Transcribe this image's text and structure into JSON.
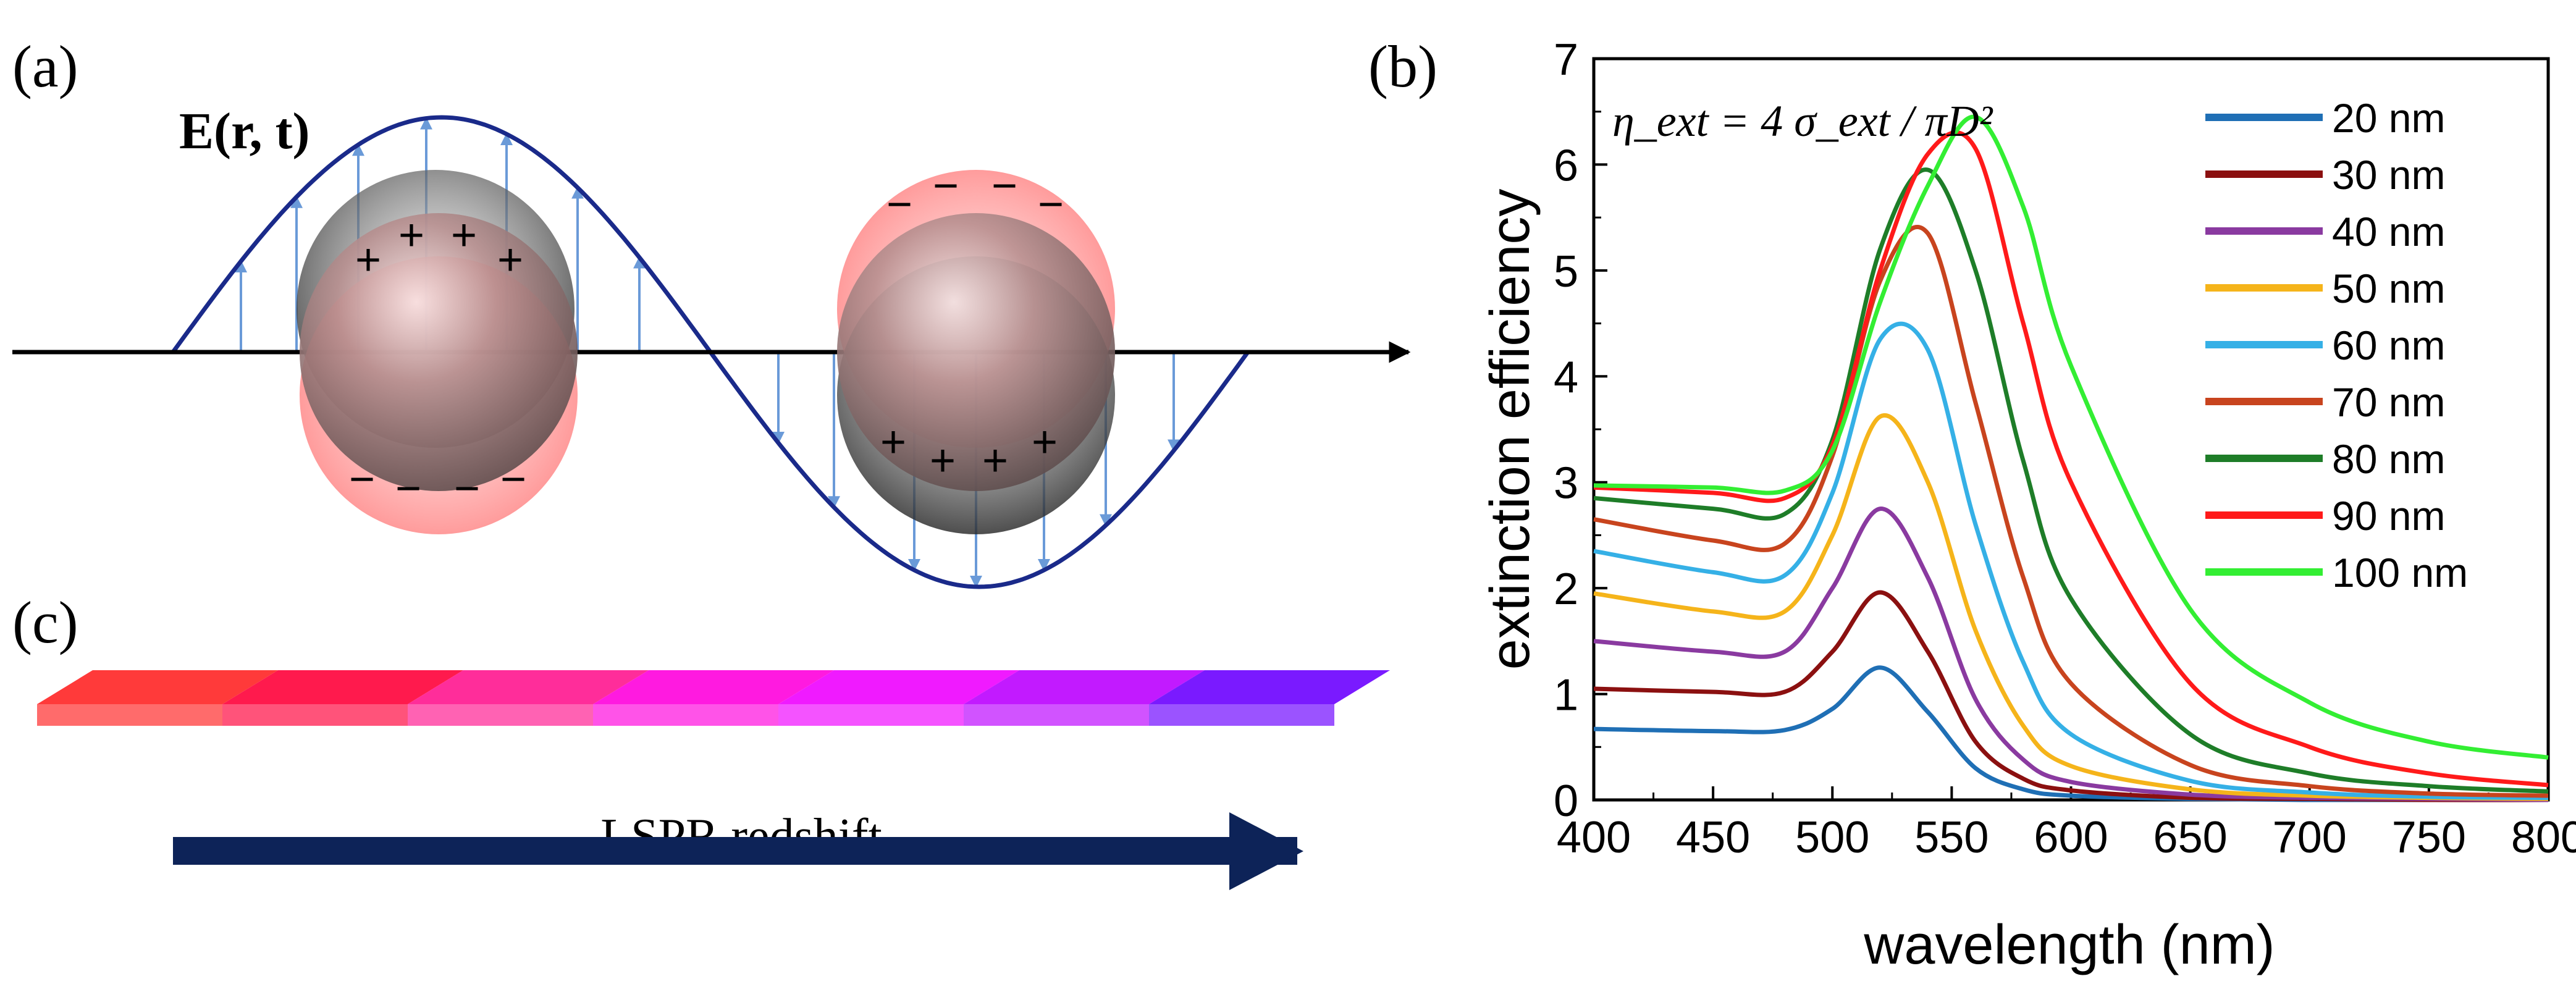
{
  "panels": {
    "a": {
      "label": "(a)",
      "field_label": "E(r, t)"
    },
    "b": {
      "label": "(b)",
      "formula": "η_ext = 4 σ_ext / πD²"
    },
    "c": {
      "label": "(c)",
      "arrow_label": "LSPR redshift"
    }
  },
  "charges": {
    "plus": "+",
    "minus": "−"
  },
  "swatch_colors": [
    "#ff3a3a",
    "#ff1a4d",
    "#ff2d9a",
    "#ff1ae0",
    "#f01aff",
    "#c21aff",
    "#7a1aff"
  ],
  "colors": {
    "wave": "#1a2a8a",
    "field_arrows": "#6a9ad8",
    "axis": "#000000",
    "redshift_arrow": "#0d2358"
  },
  "chart_data": {
    "type": "line",
    "xlabel": "wavelength (nm)",
    "ylabel": "extinction efficiency",
    "xlim": [
      400,
      800
    ],
    "ylim": [
      0,
      7
    ],
    "xticks": [
      400,
      450,
      500,
      550,
      600,
      650,
      700,
      750,
      800
    ],
    "yticks": [
      0,
      1,
      2,
      3,
      4,
      5,
      6,
      7
    ],
    "grid": false,
    "legend_position": "top-right",
    "x": [
      400,
      450,
      480,
      500,
      520,
      540,
      560,
      580,
      600,
      650,
      700,
      750,
      800
    ],
    "series": [
      {
        "name": "20 nm",
        "color": "#1f6fb5",
        "values": [
          0.67,
          0.65,
          0.66,
          0.86,
          1.25,
          0.83,
          0.3,
          0.1,
          0.04,
          0.01,
          0.0,
          0.0,
          0.0
        ]
      },
      {
        "name": "30 nm",
        "color": "#8b1010",
        "values": [
          1.05,
          1.02,
          1.02,
          1.4,
          1.96,
          1.4,
          0.55,
          0.2,
          0.09,
          0.02,
          0.01,
          0.0,
          0.0
        ]
      },
      {
        "name": "40 nm",
        "color": "#8a3aa0",
        "values": [
          1.5,
          1.4,
          1.4,
          2.0,
          2.75,
          2.1,
          0.95,
          0.38,
          0.17,
          0.05,
          0.02,
          0.01,
          0.0
        ]
      },
      {
        "name": "50 nm",
        "color": "#f5b41a",
        "values": [
          1.95,
          1.78,
          1.78,
          2.5,
          3.62,
          3.0,
          1.6,
          0.7,
          0.32,
          0.1,
          0.04,
          0.02,
          0.01
        ]
      },
      {
        "name": "60 nm",
        "color": "#35b0e6",
        "values": [
          2.35,
          2.15,
          2.12,
          2.9,
          4.35,
          4.25,
          2.6,
          1.3,
          0.62,
          0.18,
          0.07,
          0.03,
          0.02
        ]
      },
      {
        "name": "70 nm",
        "color": "#c8441e",
        "values": [
          2.65,
          2.45,
          2.42,
          3.25,
          4.9,
          5.35,
          3.75,
          2.1,
          1.1,
          0.33,
          0.13,
          0.06,
          0.04
        ]
      },
      {
        "name": "80 nm",
        "color": "#1e7d28",
        "values": [
          2.85,
          2.75,
          2.7,
          3.4,
          5.2,
          5.95,
          5.0,
          3.2,
          1.9,
          0.62,
          0.25,
          0.13,
          0.08
        ]
      },
      {
        "name": "90 nm",
        "color": "#ff1a1a",
        "values": [
          2.95,
          2.9,
          2.85,
          3.35,
          5.0,
          6.1,
          6.15,
          4.5,
          3.0,
          1.1,
          0.5,
          0.25,
          0.14
        ]
      },
      {
        "name": "100 nm",
        "color": "#33ee33",
        "values": [
          2.97,
          2.95,
          2.92,
          3.3,
          4.7,
          5.8,
          6.45,
          5.6,
          4.1,
          1.8,
          0.92,
          0.55,
          0.4
        ]
      }
    ]
  }
}
